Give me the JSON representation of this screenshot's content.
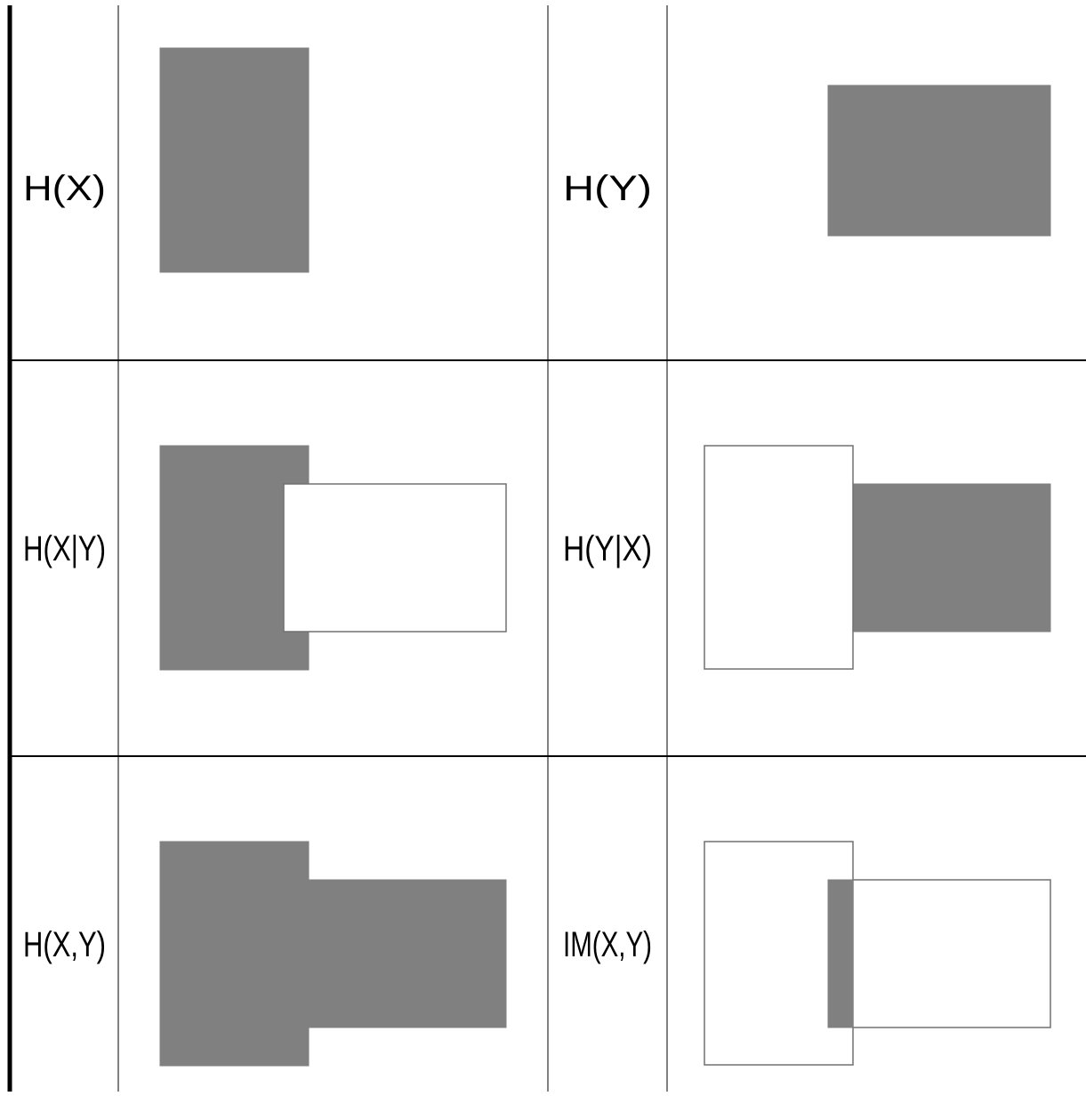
{
  "diagram": {
    "colors": {
      "fill": "#808080",
      "outline": "#707070",
      "grid_line": "#808080",
      "row_line": "#000000",
      "left_border": "#000000",
      "background": "#ffffff"
    },
    "cells": [
      {
        "label": "H(X)",
        "name": "cell-entropy-x",
        "left": "filled",
        "right": "none"
      },
      {
        "label": "H(Y)",
        "name": "cell-entropy-y",
        "left": "none",
        "right": "filled"
      },
      {
        "label": "H(X|Y)",
        "name": "cell-conditional-x-y",
        "left": "filled",
        "right": "hollow"
      },
      {
        "label": "H(Y|X)",
        "name": "cell-conditional-y-x",
        "left": "hollow",
        "right": "filled"
      },
      {
        "label": "H(X,Y)",
        "name": "cell-joint-entropy",
        "left": "filled",
        "right": "filled"
      },
      {
        "label": "IM(X,Y)",
        "name": "cell-mutual-information",
        "left": "hollow",
        "right": "hollow",
        "overlap": "filled"
      }
    ]
  }
}
